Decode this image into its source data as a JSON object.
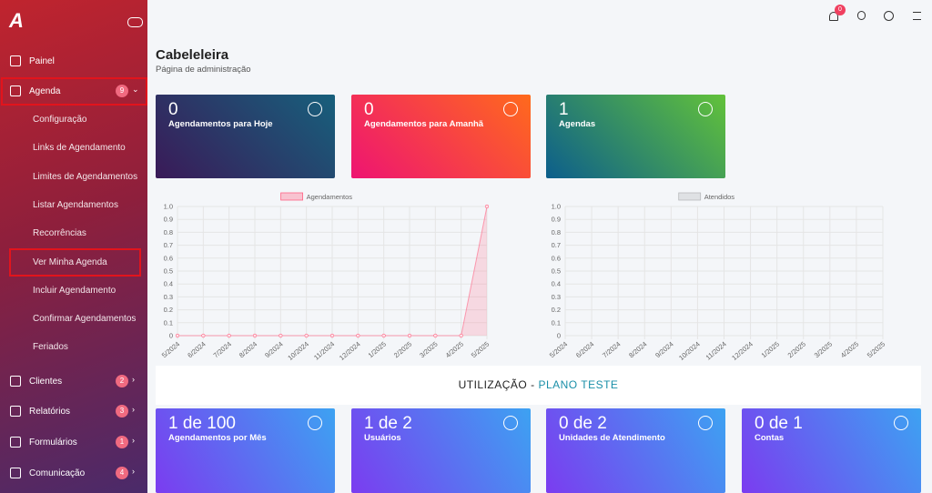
{
  "sidebar": {
    "logo": "A",
    "menu": [
      {
        "label": "Painel"
      },
      {
        "label": "Agenda",
        "badge": 9,
        "submenu": [
          "Configuração",
          "Links de Agendamento",
          "Limites de Agendamentos",
          "Listar Agendamentos",
          "Recorrências",
          "Ver Minha Agenda",
          "Incluir Agendamento",
          "Confirmar Agendamentos",
          "Feriados"
        ]
      },
      {
        "label": "Clientes",
        "badge": 2
      },
      {
        "label": "Relatórios",
        "badge": 3
      },
      {
        "label": "Formulários",
        "badge": 1
      },
      {
        "label": "Comunicação",
        "badge": 4
      }
    ]
  },
  "header": {
    "notifications": 0,
    "title": "Cabeleleira",
    "subtitle": "Página de administração"
  },
  "cards": [
    {
      "value": 0,
      "label": "Agendamentos para Hoje"
    },
    {
      "value": 0,
      "label": "Agendamentos para Amanhã"
    },
    {
      "value": 1,
      "label": "Agendas"
    }
  ],
  "chart_data": [
    {
      "type": "line",
      "categories": [
        "5/2024",
        "6/2024",
        "7/2024",
        "8/2024",
        "9/2024",
        "10/2024",
        "11/2024",
        "12/2024",
        "1/2025",
        "2/2025",
        "3/2025",
        "4/2025",
        "5/2025"
      ],
      "series": [
        {
          "name": "Agendamentos",
          "color": "#ff6384",
          "values": [
            0,
            0,
            0,
            0,
            0,
            0,
            0,
            0,
            0,
            0,
            0,
            0,
            1
          ]
        }
      ],
      "ylim": [
        0,
        1
      ],
      "yticks": [
        0,
        0.1,
        0.2,
        0.3,
        0.4,
        0.5,
        0.6,
        0.7,
        0.8,
        0.9,
        {
          "value": 1,
          "label": "1.0"
        }
      ],
      "grid": true
    },
    {
      "type": "line",
      "categories": [
        "5/2024",
        "6/2024",
        "7/2024",
        "8/2024",
        "9/2024",
        "10/2024",
        "11/2024",
        "12/2024",
        "1/2025",
        "2/2025",
        "3/2025",
        "4/2025",
        "5/2025"
      ],
      "series": [
        {
          "name": "Atendidos",
          "color": "#b8b9bd",
          "values": [
            null,
            null,
            null,
            null,
            null,
            null,
            null,
            null,
            null,
            null,
            null,
            null,
            null
          ]
        }
      ],
      "ylim": [
        0,
        1
      ],
      "yticks": [
        0,
        0.1,
        0.2,
        0.3,
        0.4,
        0.5,
        0.6,
        0.7,
        0.8,
        0.9,
        {
          "value": 1,
          "label": "1.0"
        }
      ],
      "grid": true
    }
  ],
  "usage": {
    "title": "UTILIZAÇÃO -",
    "plan": "PLANO TESTE",
    "cards": [
      {
        "value": "1 de 100",
        "label": "Agendamentos por Mês"
      },
      {
        "value": "1 de 2",
        "label": "Usuários"
      },
      {
        "value": "0 de 2",
        "label": "Unidades de Atendimento"
      },
      {
        "value": "0 de 1",
        "label": "Contas"
      }
    ]
  }
}
